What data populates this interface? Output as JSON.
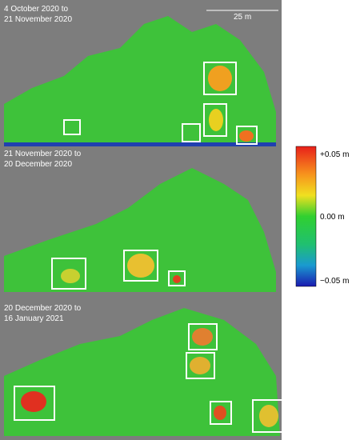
{
  "panels": [
    {
      "label_lines": [
        "4 October 2020 to",
        "21 November 2020"
      ]
    },
    {
      "label_lines": [
        "21 November 2020 to",
        "20 December 2020"
      ]
    },
    {
      "label_lines": [
        "20 December 2020 to",
        "16 January 2021"
      ]
    }
  ],
  "scale_bar": {
    "label": "25 m"
  },
  "colorbar": {
    "labels": [
      "+0.05 m",
      "0.00 m",
      "−0.05 m"
    ]
  }
}
